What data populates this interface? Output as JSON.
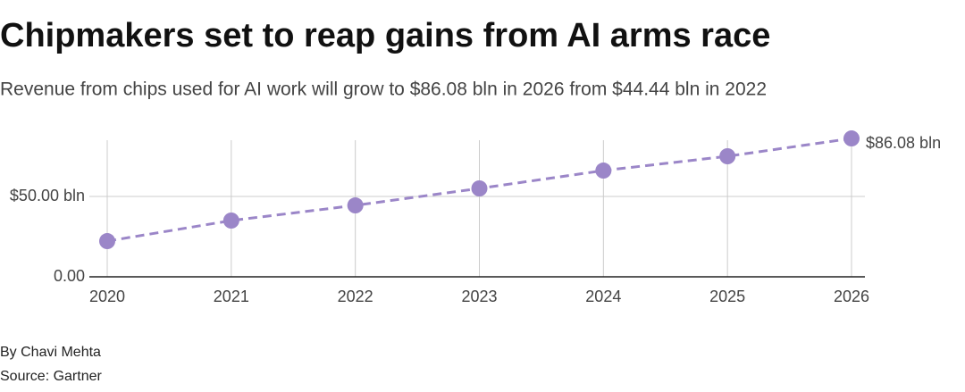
{
  "chart_data": {
    "type": "line",
    "title": "Chipmakers set to reap gains from AI arms race",
    "subtitle": "Revenue from chips used for AI work will grow to $86.08 bln in 2026 from $44.44 bln in 2022",
    "x": [
      2020,
      2021,
      2022,
      2023,
      2024,
      2025,
      2026
    ],
    "series": [
      {
        "name": "Revenue",
        "color": "#9b86c8",
        "values": [
          22.2,
          35.0,
          44.44,
          55.0,
          66.1,
          75.0,
          86.08
        ],
        "value_labels": [
          null,
          null,
          null,
          null,
          null,
          null,
          "$86.08 bln"
        ]
      }
    ],
    "xlim": [
      2020,
      2026
    ],
    "xticks": [
      2020,
      2021,
      2022,
      2023,
      2024,
      2025,
      2026
    ],
    "ylim": [
      0,
      85
    ],
    "yticks": [
      {
        "value": 0,
        "label": "0.00"
      },
      {
        "value": 50,
        "label": "$50.00 bln"
      }
    ],
    "grid": true,
    "dashed": true,
    "byline": "By Chavi Mehta",
    "source": "Source: Gartner"
  }
}
